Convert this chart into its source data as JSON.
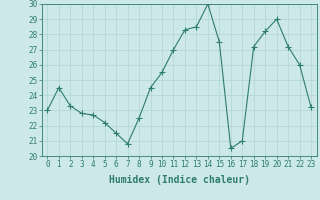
{
  "x": [
    0,
    1,
    2,
    3,
    4,
    5,
    6,
    7,
    8,
    9,
    10,
    11,
    12,
    13,
    14,
    15,
    16,
    17,
    18,
    19,
    20,
    21,
    22,
    23
  ],
  "y": [
    23,
    24.5,
    23.3,
    22.8,
    22.7,
    22.2,
    21.5,
    20.8,
    22.5,
    24.5,
    25.5,
    27.0,
    28.3,
    28.5,
    30.0,
    27.5,
    20.5,
    21.0,
    27.2,
    28.2,
    29.0,
    27.2,
    26.0,
    23.2
  ],
  "xlim": [
    -0.5,
    23.5
  ],
  "ylim": [
    20,
    30
  ],
  "yticks": [
    20,
    21,
    22,
    23,
    24,
    25,
    26,
    27,
    28,
    29,
    30
  ],
  "xticks": [
    0,
    1,
    2,
    3,
    4,
    5,
    6,
    7,
    8,
    9,
    10,
    11,
    12,
    13,
    14,
    15,
    16,
    17,
    18,
    19,
    20,
    21,
    22,
    23
  ],
  "xlabel": "Humidex (Indice chaleur)",
  "line_color": "#2e7d6e",
  "marker": "+",
  "marker_size": 4,
  "line_width": 0.8,
  "bg_color": "#cce8e8",
  "grid_color": "#b0d4d4",
  "tick_color": "#2e7d6e",
  "label_color": "#2e7d6e",
  "tick_fontsize": 5.5,
  "xlabel_fontsize": 7
}
